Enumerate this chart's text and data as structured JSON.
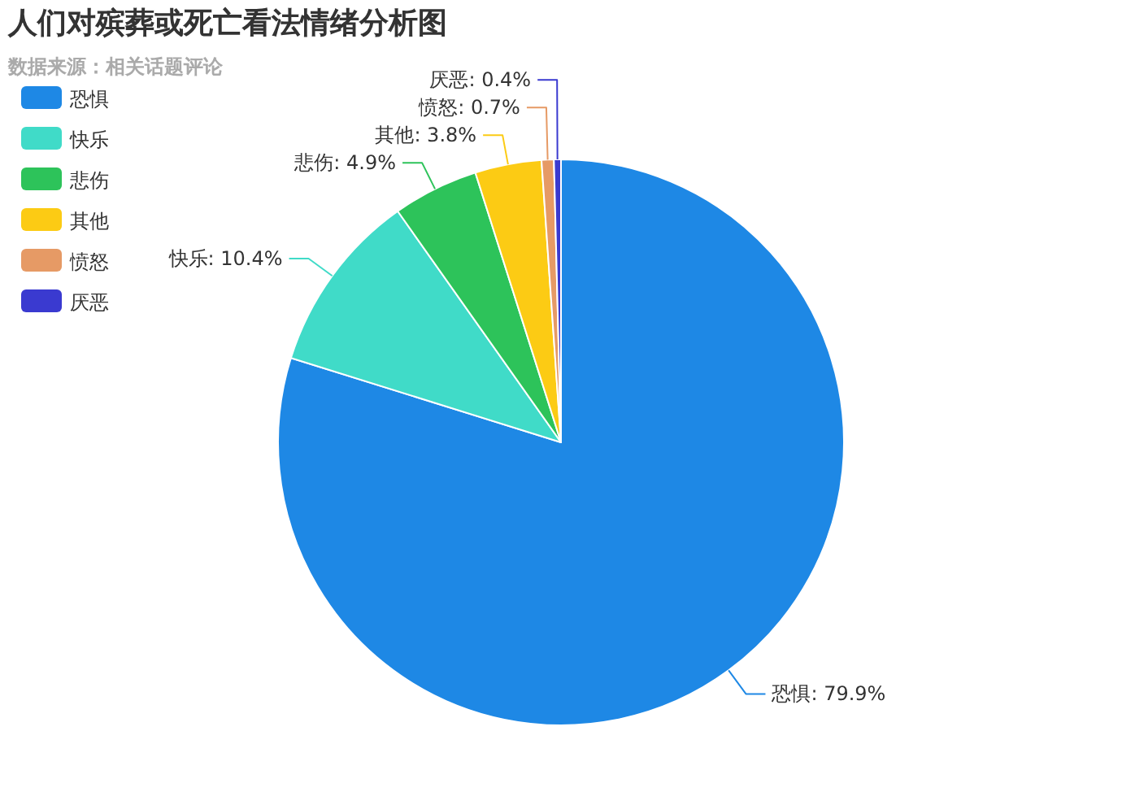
{
  "chart_data": {
    "type": "pie",
    "title": "人们对殡葬或死亡看法情绪分析图",
    "subtitle": "数据来源：相关话题评论",
    "categories": [
      "恐惧",
      "快乐",
      "悲伤",
      "其他",
      "愤怒",
      "厌恶"
    ],
    "values": [
      79.9,
      10.4,
      4.9,
      3.8,
      0.7,
      0.4
    ],
    "value_labels": [
      "恐惧: 79.9%",
      "快乐: 10.4%",
      "悲伤: 4.9%",
      "其他: 3.8%",
      "愤怒: 0.7%",
      "厌恶: 0.4%"
    ],
    "colors": [
      "#1e88e5",
      "#40dbc8",
      "#2dc35a",
      "#fccb14",
      "#e69a65",
      "#3a3ad0"
    ],
    "legend": "top left"
  }
}
